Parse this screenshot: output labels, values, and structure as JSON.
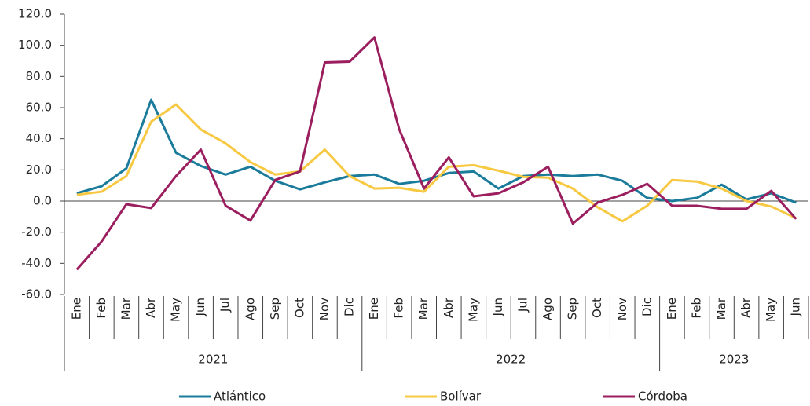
{
  "chart_data": {
    "type": "line",
    "categories": [
      "Ene",
      "Feb",
      "Mar",
      "Abr",
      "May",
      "Jun",
      "Jul",
      "Ago",
      "Sep",
      "Oct",
      "Nov",
      "Dic",
      "Ene",
      "Feb",
      "Mar",
      "Abr",
      "May",
      "Jun",
      "Jul",
      "Ago",
      "Sep",
      "Oct",
      "Nov",
      "Dic",
      "Ene",
      "Feb",
      "Mar",
      "Abr",
      "May",
      "Jun"
    ],
    "years": [
      "2021",
      "2022",
      "2023"
    ],
    "series": [
      {
        "name": "Atlántico",
        "color": "#1b7b9b",
        "values": [
          5,
          9.5,
          21,
          65,
          31,
          22.5,
          17,
          22,
          13,
          7.5,
          12,
          16,
          17,
          11,
          13,
          18,
          19,
          8,
          16,
          17,
          16,
          17,
          13,
          2,
          0,
          2,
          10.5,
          1,
          5,
          -1
        ]
      },
      {
        "name": "Bolívar",
        "color": "#f7c943",
        "values": [
          4,
          6,
          16,
          51,
          62,
          46,
          37,
          25,
          17,
          19,
          33,
          16,
          8,
          8.5,
          6,
          22,
          23,
          19.5,
          15.5,
          15,
          8,
          -4,
          -13,
          -3,
          13.5,
          12.5,
          8,
          0,
          -3.5,
          -11
        ]
      },
      {
        "name": "Córdoba",
        "color": "#9b1f5f",
        "values": [
          -44,
          -26,
          -2,
          -4.5,
          16,
          33,
          -3,
          -12.5,
          13.5,
          19,
          89,
          89.5,
          105,
          46,
          8,
          28,
          3,
          5,
          12,
          22,
          -14.5,
          -1,
          4,
          11,
          -3,
          -3,
          -5,
          -5,
          6.5,
          -11.5
        ]
      }
    ],
    "ylim": [
      -60,
      120
    ],
    "yticks": [
      {
        "value": -60,
        "label": "-60.0"
      },
      {
        "value": -40,
        "label": "-40.0"
      },
      {
        "value": -20,
        "label": "-20.0"
      },
      {
        "value": 0,
        "label": "0.0"
      },
      {
        "value": 20,
        "label": "20.0"
      },
      {
        "value": 40,
        "label": "40.0"
      },
      {
        "value": 60,
        "label": "60.0"
      },
      {
        "value": 80,
        "label": "80.0"
      },
      {
        "value": 100,
        "label": "100.0"
      },
      {
        "value": 120,
        "label": "120.0"
      }
    ],
    "legend": "bottom"
  }
}
